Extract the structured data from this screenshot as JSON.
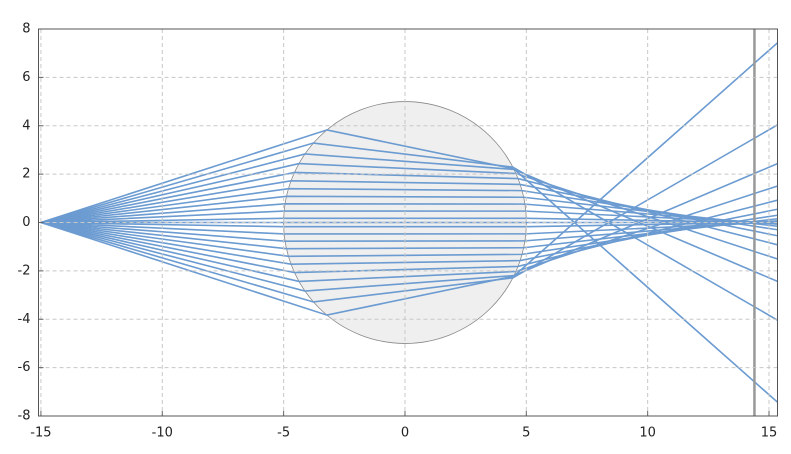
{
  "chart_data": {
    "type": "line",
    "color": "#6b9bd1",
    "xlim": [
      -15.1,
      15.35
    ],
    "ylim": [
      -8,
      8
    ],
    "xticks": [
      -15,
      -10,
      -5,
      0,
      5,
      10,
      15
    ],
    "yticks": [
      -8,
      -6,
      -4,
      -2,
      0,
      2,
      4,
      6,
      8
    ],
    "grid": true,
    "lens": {
      "x": 0,
      "y": 0,
      "r": 5,
      "color": "#efefef"
    },
    "vline": {
      "x": 14.4,
      "color": "#999999"
    },
    "series": [
      {
        "x": [
          -15,
          -3.216,
          4.48,
          15.35
        ],
        "values": [
          0,
          3.828,
          2.221,
          -7.43
        ]
      },
      {
        "x": [
          -15,
          -3.773,
          4.446,
          15.35
        ],
        "values": [
          0,
          3.285,
          2.289,
          -4.036
        ]
      },
      {
        "x": [
          -15,
          -4.119,
          4.493,
          15.35
        ],
        "values": [
          0,
          2.834,
          2.195,
          -2.435
        ]
      },
      {
        "x": [
          -15,
          -4.367,
          4.572,
          15.35
        ],
        "values": [
          0,
          2.435,
          2.025,
          -1.51
        ]
      },
      {
        "x": [
          -15,
          -4.552,
          4.659,
          15.35
        ],
        "values": [
          0,
          2.069,
          1.815,
          -0.922
        ]
      },
      {
        "x": [
          -15,
          -4.694,
          4.746,
          15.35
        ],
        "values": [
          0,
          1.725,
          1.575,
          -0.548
        ]
      },
      {
        "x": [
          -15,
          -4.801,
          4.823,
          15.35
        ],
        "values": [
          0,
          1.397,
          1.318,
          -0.3
        ]
      },
      {
        "x": [
          -15,
          -4.882,
          4.89,
          15.35
        ],
        "values": [
          0,
          1.081,
          1.044,
          -0.155
        ]
      },
      {
        "x": [
          -15,
          -4.94,
          4.942,
          15.35
        ],
        "values": [
          0,
          0.774,
          0.76,
          -0.072
        ]
      },
      {
        "x": [
          -15,
          -4.978,
          4.978,
          15.35
        ],
        "values": [
          0,
          0.473,
          0.47,
          -0.026
        ]
      },
      {
        "x": [
          -15,
          -4.997,
          4.997,
          15.35
        ],
        "values": [
          0,
          0.175,
          0.174,
          -0.007
        ]
      },
      {
        "x": [
          -15,
          -5,
          5,
          15.35
        ],
        "values": [
          0,
          0,
          0,
          0
        ]
      },
      {
        "x": [
          -15,
          -4.997,
          4.997,
          15.35
        ],
        "values": [
          0,
          -0.175,
          -0.174,
          0.007
        ]
      },
      {
        "x": [
          -15,
          -4.978,
          4.978,
          15.35
        ],
        "values": [
          0,
          -0.473,
          -0.47,
          0.026
        ]
      },
      {
        "x": [
          -15,
          -4.94,
          4.942,
          15.35
        ],
        "values": [
          0,
          -0.774,
          -0.76,
          0.072
        ]
      },
      {
        "x": [
          -15,
          -4.882,
          4.89,
          15.35
        ],
        "values": [
          0,
          -1.081,
          -1.044,
          0.155
        ]
      },
      {
        "x": [
          -15,
          -4.801,
          4.823,
          15.35
        ],
        "values": [
          0,
          -1.397,
          -1.318,
          0.3
        ]
      },
      {
        "x": [
          -15,
          -4.694,
          4.746,
          15.35
        ],
        "values": [
          0,
          -1.725,
          -1.575,
          0.548
        ]
      },
      {
        "x": [
          -15,
          -4.552,
          4.659,
          15.35
        ],
        "values": [
          0,
          -2.069,
          -1.815,
          0.922
        ]
      },
      {
        "x": [
          -15,
          -4.367,
          4.572,
          15.35
        ],
        "values": [
          0,
          -2.435,
          -2.025,
          1.51
        ]
      },
      {
        "x": [
          -15,
          -4.119,
          4.493,
          15.35
        ],
        "values": [
          0,
          -2.834,
          -2.195,
          2.435
        ]
      },
      {
        "x": [
          -15,
          -3.773,
          4.446,
          15.35
        ],
        "values": [
          0,
          -3.285,
          -2.289,
          4.036
        ]
      },
      {
        "x": [
          -15,
          -3.216,
          4.48,
          15.35
        ],
        "values": [
          0,
          -3.828,
          -2.221,
          7.43
        ]
      }
    ]
  }
}
